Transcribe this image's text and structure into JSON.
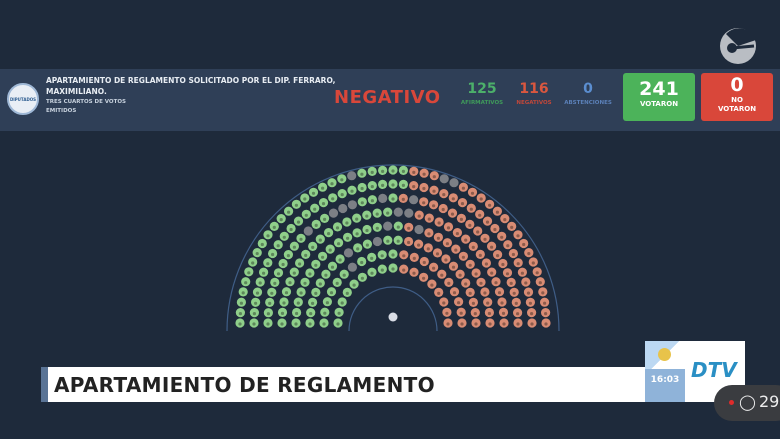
{
  "banner": {
    "title": "APARTAMIENTO DE REGLAMENTO SOLICITADO POR EL DIP. FERRARO, MAXIMILIANO.",
    "subtitle": "TRES CUARTOS DE VOTOS EMITIDOS",
    "seal_text": "DIPUTADOS ARGENTINA",
    "result": "NEGATIVO",
    "stats": [
      {
        "value": "125",
        "label": "AFIRMATIVOS",
        "color": "#4caf6a"
      },
      {
        "value": "116",
        "label": "NEGATIVOS",
        "color": "#d9573f"
      },
      {
        "value": "0",
        "label": "ABSTENCIONES",
        "color": "#5b8ed0"
      }
    ],
    "voted": {
      "value": "241",
      "label": "VOTARON",
      "color": "#4cb35a"
    },
    "not_voted": {
      "value": "0",
      "label": "NO VOTARON",
      "color": "#d9473a"
    }
  },
  "hemicycle": {
    "affirmative": 125,
    "negative": 116,
    "absent": 16,
    "colors": {
      "affirmative": "#8fcf8a",
      "negative": "#d98c74",
      "absent": "#7c7f85"
    }
  },
  "lower_third": {
    "headline": "APARTAMIENTO DE REGLAMENTO",
    "time": "16:03",
    "channel": "DTV"
  },
  "live": {
    "viewers": "29"
  }
}
